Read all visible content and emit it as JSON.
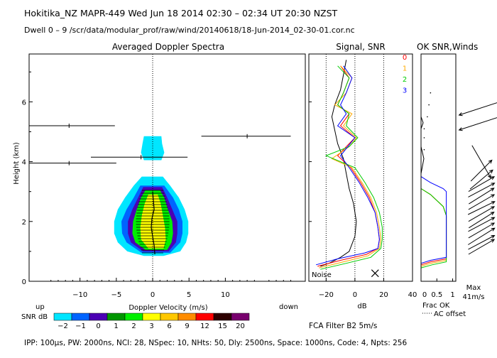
{
  "header": {
    "line1": "Hokitika_NZ  MAPR-449  Wed Jun 18 2014 02:30 – 02:34 UT 20:30 NZST",
    "line2": "Dwell  0 –  9   /scr/data/modular_prof/raw/wind/20140618/18-Jun-2014_02-30-01.cor.nc"
  },
  "footer": {
    "params": "IPP: 100μs,  PW: 2000ns,  NCI:  28,  NSpec: 10,  NHts: 50,  Dly: 2500ns,  Space: 1000ns,  Code: 4,  Npts: 256",
    "fca_filter": "FCA Filter B2   5m/s"
  },
  "colors": {
    "snr_scale": [
      "#00e6ff",
      "#0064ff",
      "#4b00b4",
      "#009600",
      "#00f000",
      "#ffff00",
      "#ffc800",
      "#ff8c00",
      "#ff0000",
      "#2d0000",
      "#78006e"
    ],
    "series": [
      "#ff0000",
      "#ffaa00",
      "#00cc00",
      "#0000ff"
    ],
    "noise": "#000000"
  },
  "icons": {
    "noise_marker": "x-mark-icon",
    "wind_barb": "wind-arrow-icon"
  },
  "chart_data": [
    {
      "type": "heatmap",
      "title": "Averaged Doppler Spectra",
      "xlabel": "Doppler Velocity (m/s)",
      "ylabel": "Height (km)",
      "xlim": [
        -17,
        21
      ],
      "ylim": [
        0,
        7.6
      ],
      "x_ticks": [
        "−10",
        "−5",
        "0",
        "5",
        "10"
      ],
      "y_ticks": [
        "0",
        "2",
        "4",
        "6"
      ],
      "left_note": "up",
      "right_note": "down",
      "colorbar": {
        "label": "SNR dB",
        "ticks": [
          "−2",
          "−1",
          "0",
          "1",
          "2",
          "3",
          "6",
          "9",
          "12",
          "15",
          "20"
        ]
      },
      "snr_contours": [
        {
          "level": "-2",
          "extent": [
            [
              0.85,
              -1.2,
              1.5
            ],
            [
              1.0,
              -3.5,
              3.8
            ],
            [
              1.3,
              -4.8,
              4.6
            ],
            [
              1.6,
              -5.3,
              4.9
            ],
            [
              2.0,
              -5.3,
              4.9
            ],
            [
              2.4,
              -4.8,
              4.4
            ],
            [
              2.8,
              -3.8,
              3.6
            ],
            [
              3.2,
              -2.6,
              2.4
            ],
            [
              3.5,
              -1.5,
              1.4
            ]
          ]
        },
        {
          "level": "-2 (upper patch)",
          "extent": [
            [
              4.05,
              -1.2,
              1.2
            ],
            [
              4.3,
              -1.6,
              1.6
            ],
            [
              4.6,
              -1.4,
              1.3
            ],
            [
              4.85,
              -1.2,
              1.2
            ]
          ]
        },
        {
          "level": "-1",
          "extent": [
            [
              0.95,
              -1.5,
              2.4
            ],
            [
              1.3,
              -3.6,
              3.8
            ],
            [
              1.6,
              -4.2,
              4.1
            ],
            [
              2.0,
              -4.3,
              4.1
            ],
            [
              2.4,
              -3.6,
              3.6
            ],
            [
              2.8,
              -2.6,
              2.8
            ],
            [
              3.2,
              -1.7,
              1.6
            ]
          ]
        },
        {
          "level": "0",
          "extent": [
            [
              1.0,
              -1.3,
              2.2
            ],
            [
              1.3,
              -3.0,
              3.2
            ],
            [
              1.6,
              -3.4,
              3.4
            ],
            [
              2.0,
              -3.4,
              3.4
            ],
            [
              2.4,
              -2.8,
              2.7
            ],
            [
              2.8,
              -2.0,
              2.0
            ],
            [
              3.15,
              -1.3,
              1.3
            ]
          ]
        },
        {
          "level": "2",
          "extent": [
            [
              1.05,
              -1.0,
              2.0
            ],
            [
              1.3,
              -2.4,
              2.6
            ],
            [
              1.6,
              -2.8,
              2.8
            ],
            [
              2.0,
              -2.7,
              2.7
            ],
            [
              2.4,
              -2.2,
              2.1
            ],
            [
              2.8,
              -1.6,
              1.6
            ],
            [
              3.05,
              -1.0,
              1.0
            ]
          ]
        },
        {
          "level": "3",
          "extent": [
            [
              1.1,
              -0.6,
              1.5
            ],
            [
              1.4,
              -1.6,
              1.8
            ],
            [
              1.8,
              -1.7,
              1.7
            ],
            [
              2.2,
              -1.5,
              1.4
            ],
            [
              2.6,
              -1.1,
              1.1
            ],
            [
              2.9,
              -0.6,
              0.7
            ]
          ]
        }
      ],
      "mean_velocity": {
        "heights": [
          0.9,
          1.2,
          1.5,
          1.8,
          2.1,
          2.4,
          2.7,
          3.0
        ],
        "values": [
          0.3,
          0.2,
          0.0,
          -0.2,
          -0.1,
          0.2,
          0.1,
          0.0
        ]
      },
      "interference_lines": [
        {
          "height": 5.2,
          "v_start": -17.0,
          "v_end": -5.2,
          "center": -11.5
        },
        {
          "height": 4.15,
          "v_start": -8.5,
          "v_end": 4.8,
          "center": -1.6
        },
        {
          "height": 3.95,
          "v_start": -17.0,
          "v_end": -5.0,
          "center": -11.5
        },
        {
          "height": 4.85,
          "v_start": 6.7,
          "v_end": 19.0,
          "center": 13.0
        }
      ]
    },
    {
      "type": "line",
      "title": "Signal, SNR",
      "xlabel": "dB",
      "xlim": [
        -32,
        40
      ],
      "ylim": [
        0,
        7.6
      ],
      "x_ticks": [
        "−20",
        "0",
        "20",
        "40"
      ],
      "dotted_x": [
        -20,
        0,
        20
      ],
      "noise_label": "Noise",
      "series": [
        {
          "name": "Noise",
          "points": [
            [
              -24,
              0.5
            ],
            [
              -18,
              0.6
            ],
            [
              -10,
              0.8
            ],
            [
              -4,
              1.0
            ],
            [
              0,
              1.5
            ],
            [
              1,
              2.0
            ],
            [
              -1,
              2.6
            ],
            [
              -4,
              3.1
            ],
            [
              -6,
              3.6
            ],
            [
              -8,
              4.1
            ],
            [
              -12,
              4.6
            ],
            [
              -16,
              5.5
            ],
            [
              -14,
              5.9
            ],
            [
              -10,
              6.4
            ],
            [
              -8,
              6.9
            ],
            [
              -6,
              7.4
            ]
          ]
        },
        {
          "name": "0",
          "points": [
            [
              -26,
              0.5
            ],
            [
              -10,
              0.7
            ],
            [
              8,
              0.9
            ],
            [
              16,
              1.1
            ],
            [
              17,
              1.4
            ],
            [
              16,
              1.8
            ],
            [
              14,
              2.3
            ],
            [
              10,
              2.8
            ],
            [
              4,
              3.3
            ],
            [
              -3,
              3.8
            ],
            [
              -12,
              4.2
            ],
            [
              -6,
              4.5
            ],
            [
              0,
              4.8
            ],
            [
              -10,
              5.2
            ],
            [
              -4,
              5.6
            ],
            [
              -12,
              5.9
            ],
            [
              -8,
              6.3
            ],
            [
              -4,
              6.8
            ],
            [
              -10,
              7.2
            ]
          ]
        },
        {
          "name": "1",
          "points": [
            [
              -25,
              0.45
            ],
            [
              -8,
              0.65
            ],
            [
              9,
              0.85
            ],
            [
              17,
              1.1
            ],
            [
              18,
              1.4
            ],
            [
              17,
              1.8
            ],
            [
              15,
              2.3
            ],
            [
              11,
              2.8
            ],
            [
              5,
              3.3
            ],
            [
              -2,
              3.8
            ],
            [
              -16,
              4.1
            ],
            [
              -4,
              4.5
            ],
            [
              1,
              4.8
            ],
            [
              -8,
              5.2
            ],
            [
              -2,
              5.6
            ],
            [
              -14,
              5.9
            ],
            [
              -6,
              6.3
            ],
            [
              -2,
              6.8
            ],
            [
              -10,
              7.2
            ]
          ]
        },
        {
          "name": "2",
          "points": [
            [
              -24,
              0.4
            ],
            [
              -6,
              0.6
            ],
            [
              11,
              0.8
            ],
            [
              18,
              1.1
            ],
            [
              19,
              1.4
            ],
            [
              19,
              1.8
            ],
            [
              17,
              2.3
            ],
            [
              13,
              2.8
            ],
            [
              7,
              3.3
            ],
            [
              0,
              3.8
            ],
            [
              -20,
              4.2
            ],
            [
              -4,
              4.5
            ],
            [
              2,
              4.8
            ],
            [
              -6,
              5.2
            ],
            [
              -4,
              5.6
            ],
            [
              -12,
              5.9
            ],
            [
              -8,
              6.3
            ],
            [
              -4,
              6.8
            ],
            [
              -12,
              7.2
            ]
          ]
        },
        {
          "name": "3",
          "points": [
            [
              -27,
              0.55
            ],
            [
              -12,
              0.75
            ],
            [
              7,
              0.95
            ],
            [
              16,
              1.1
            ],
            [
              17,
              1.4
            ],
            [
              16,
              1.8
            ],
            [
              14,
              2.3
            ],
            [
              9,
              2.8
            ],
            [
              3,
              3.3
            ],
            [
              -4,
              3.8
            ],
            [
              -10,
              4.2
            ],
            [
              -5,
              4.5
            ],
            [
              0,
              4.8
            ],
            [
              -12,
              5.2
            ],
            [
              -6,
              5.6
            ],
            [
              -10,
              5.9
            ],
            [
              -6,
              6.3
            ],
            [
              -2,
              6.8
            ],
            [
              -8,
              7.2
            ]
          ]
        }
      ],
      "marker": {
        "x": 14,
        "y": 0.15
      }
    },
    {
      "type": "line",
      "title": "OK SNR,Winds",
      "xlabel": "Frac OK",
      "sublabel": "AC offset",
      "xlim": [
        0,
        1.1
      ],
      "ylim": [
        0,
        7.6
      ],
      "x_ticks": [
        "0",
        "0.5",
        "1"
      ],
      "legend": [
        "0",
        "1",
        "2",
        "3"
      ],
      "series": [
        {
          "name": "0",
          "points": [
            [
              0,
              0.55
            ],
            [
              0.3,
              0.65
            ],
            [
              0.8,
              0.75
            ],
            [
              0.8,
              2.2
            ],
            [
              0.7,
              2.5
            ],
            [
              0.3,
              2.9
            ],
            [
              0,
              3.1
            ]
          ]
        },
        {
          "name": "1",
          "points": [
            [
              0,
              0.5
            ],
            [
              0.3,
              0.6
            ],
            [
              0.8,
              0.7
            ],
            [
              0.8,
              2.2
            ],
            [
              0.7,
              2.5
            ],
            [
              0.3,
              2.9
            ],
            [
              0,
              3.1
            ]
          ]
        },
        {
          "name": "2",
          "points": [
            [
              0,
              0.45
            ],
            [
              0.35,
              0.55
            ],
            [
              0.8,
              0.65
            ],
            [
              0.8,
              2.2
            ],
            [
              0.7,
              2.5
            ],
            [
              0.3,
              2.9
            ],
            [
              0,
              3.1
            ]
          ]
        },
        {
          "name": "3",
          "points": [
            [
              0,
              0.6
            ],
            [
              0.3,
              0.7
            ],
            [
              0.8,
              0.8
            ],
            [
              0.8,
              3.0
            ],
            [
              0.7,
              3.1
            ],
            [
              0.3,
              3.3
            ],
            [
              0,
              3.5
            ]
          ]
        }
      ],
      "ac_offset_points": [
        [
          0.1,
          4.8
        ],
        [
          0.1,
          5.1
        ],
        [
          0.2,
          5.5
        ],
        [
          0.25,
          5.9
        ],
        [
          0.3,
          6.3
        ],
        [
          0.1,
          4.4
        ]
      ]
    },
    {
      "type": "scatter",
      "title": "Winds",
      "xlabel": "Max",
      "max_speed_label": "41m/s",
      "barbs": [
        {
          "height": 1.15,
          "speed": 19,
          "direction_deg": 60
        },
        {
          "height": 1.3,
          "speed": 19,
          "direction_deg": 62
        },
        {
          "height": 1.5,
          "speed": 20,
          "direction_deg": 58
        },
        {
          "height": 1.7,
          "speed": 19,
          "direction_deg": 60
        },
        {
          "height": 1.9,
          "speed": 19,
          "direction_deg": 62
        },
        {
          "height": 2.05,
          "speed": 19,
          "direction_deg": 58
        },
        {
          "height": 2.25,
          "speed": 19,
          "direction_deg": 60
        },
        {
          "height": 2.45,
          "speed": 19,
          "direction_deg": 64
        },
        {
          "height": 2.65,
          "speed": 19,
          "direction_deg": 60
        },
        {
          "height": 2.85,
          "speed": 19,
          "direction_deg": 58
        },
        {
          "height": 3.05,
          "speed": 19,
          "direction_deg": 62
        },
        {
          "height": 3.25,
          "speed": 19,
          "direction_deg": 60
        },
        {
          "height": 3.4,
          "speed": 19,
          "direction_deg": 50
        },
        {
          "height": 3.7,
          "speed": 19,
          "direction_deg": 45
        },
        {
          "height": 4.0,
          "speed": 24,
          "direction_deg": 150
        },
        {
          "height": 5.3,
          "speed": 30,
          "direction_deg": 252
        },
        {
          "height": 5.8,
          "speed": 30,
          "direction_deg": 252
        }
      ]
    }
  ]
}
